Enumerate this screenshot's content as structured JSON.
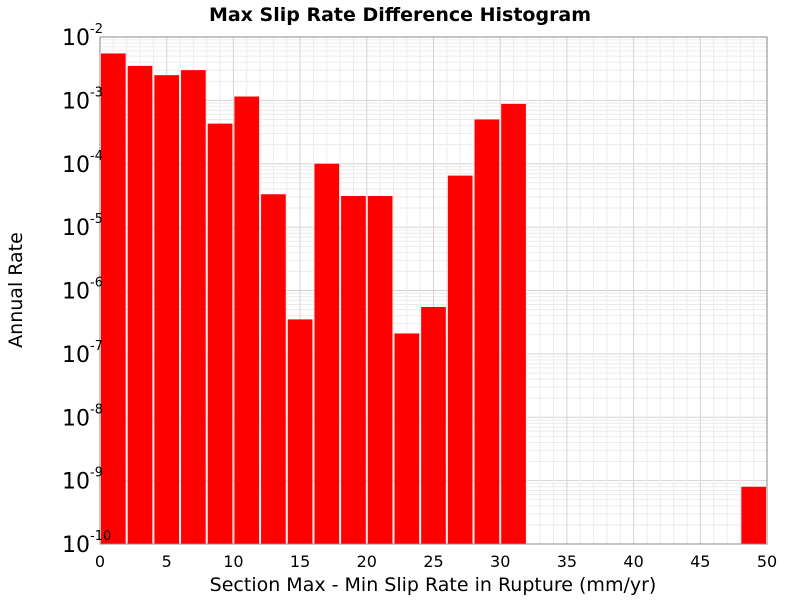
{
  "chart_data": {
    "type": "bar",
    "title": "Max Slip Rate Difference Histogram",
    "xlabel": "Section Max - Min Slip Rate in Rupture (mm/yr)",
    "ylabel": "Annual Rate",
    "xlim": [
      0,
      50
    ],
    "ylim": [
      1e-10,
      0.01
    ],
    "y_scale": "log",
    "x_ticks": [
      "0",
      "5",
      "10",
      "15",
      "20",
      "25",
      "30",
      "35",
      "40",
      "45",
      "50"
    ],
    "y_ticks": [
      {
        "base": "10",
        "exp": "-10",
        "value": 1e-10
      },
      {
        "base": "10",
        "exp": "-9",
        "value": 1e-09
      },
      {
        "base": "10",
        "exp": "-8",
        "value": 1e-08
      },
      {
        "base": "10",
        "exp": "-7",
        "value": 1e-07
      },
      {
        "base": "10",
        "exp": "-6",
        "value": 1e-06
      },
      {
        "base": "10",
        "exp": "-5",
        "value": 1e-05
      },
      {
        "base": "10",
        "exp": "-4",
        "value": 0.0001
      },
      {
        "base": "10",
        "exp": "-3",
        "value": 0.001
      },
      {
        "base": "10",
        "exp": "-2",
        "value": 0.01
      }
    ],
    "bin_width": 2,
    "bar_color": "#ff0000",
    "grid": true,
    "bins": [
      {
        "x0": 0,
        "x1": 2,
        "value": 0.0055
      },
      {
        "x0": 2,
        "x1": 4,
        "value": 0.0035
      },
      {
        "x0": 4,
        "x1": 6,
        "value": 0.0025
      },
      {
        "x0": 6,
        "x1": 8,
        "value": 0.003
      },
      {
        "x0": 8,
        "x1": 10,
        "value": 0.00043
      },
      {
        "x0": 10,
        "x1": 12,
        "value": 0.00115
      },
      {
        "x0": 12,
        "x1": 14,
        "value": 3.3e-05
      },
      {
        "x0": 14,
        "x1": 16,
        "value": 3.5e-07
      },
      {
        "x0": 16,
        "x1": 18,
        "value": 0.0001
      },
      {
        "x0": 18,
        "x1": 20,
        "value": 3.1e-05
      },
      {
        "x0": 20,
        "x1": 22,
        "value": 3.1e-05
      },
      {
        "x0": 22,
        "x1": 24,
        "value": 2.1e-07
      },
      {
        "x0": 24,
        "x1": 26,
        "value": 5.5e-07
      },
      {
        "x0": 26,
        "x1": 28,
        "value": 6.5e-05
      },
      {
        "x0": 28,
        "x1": 30,
        "value": 0.0005
      },
      {
        "x0": 30,
        "x1": 32,
        "value": 0.00088
      },
      {
        "x0": 48,
        "x1": 50,
        "value": 8e-10
      }
    ]
  }
}
